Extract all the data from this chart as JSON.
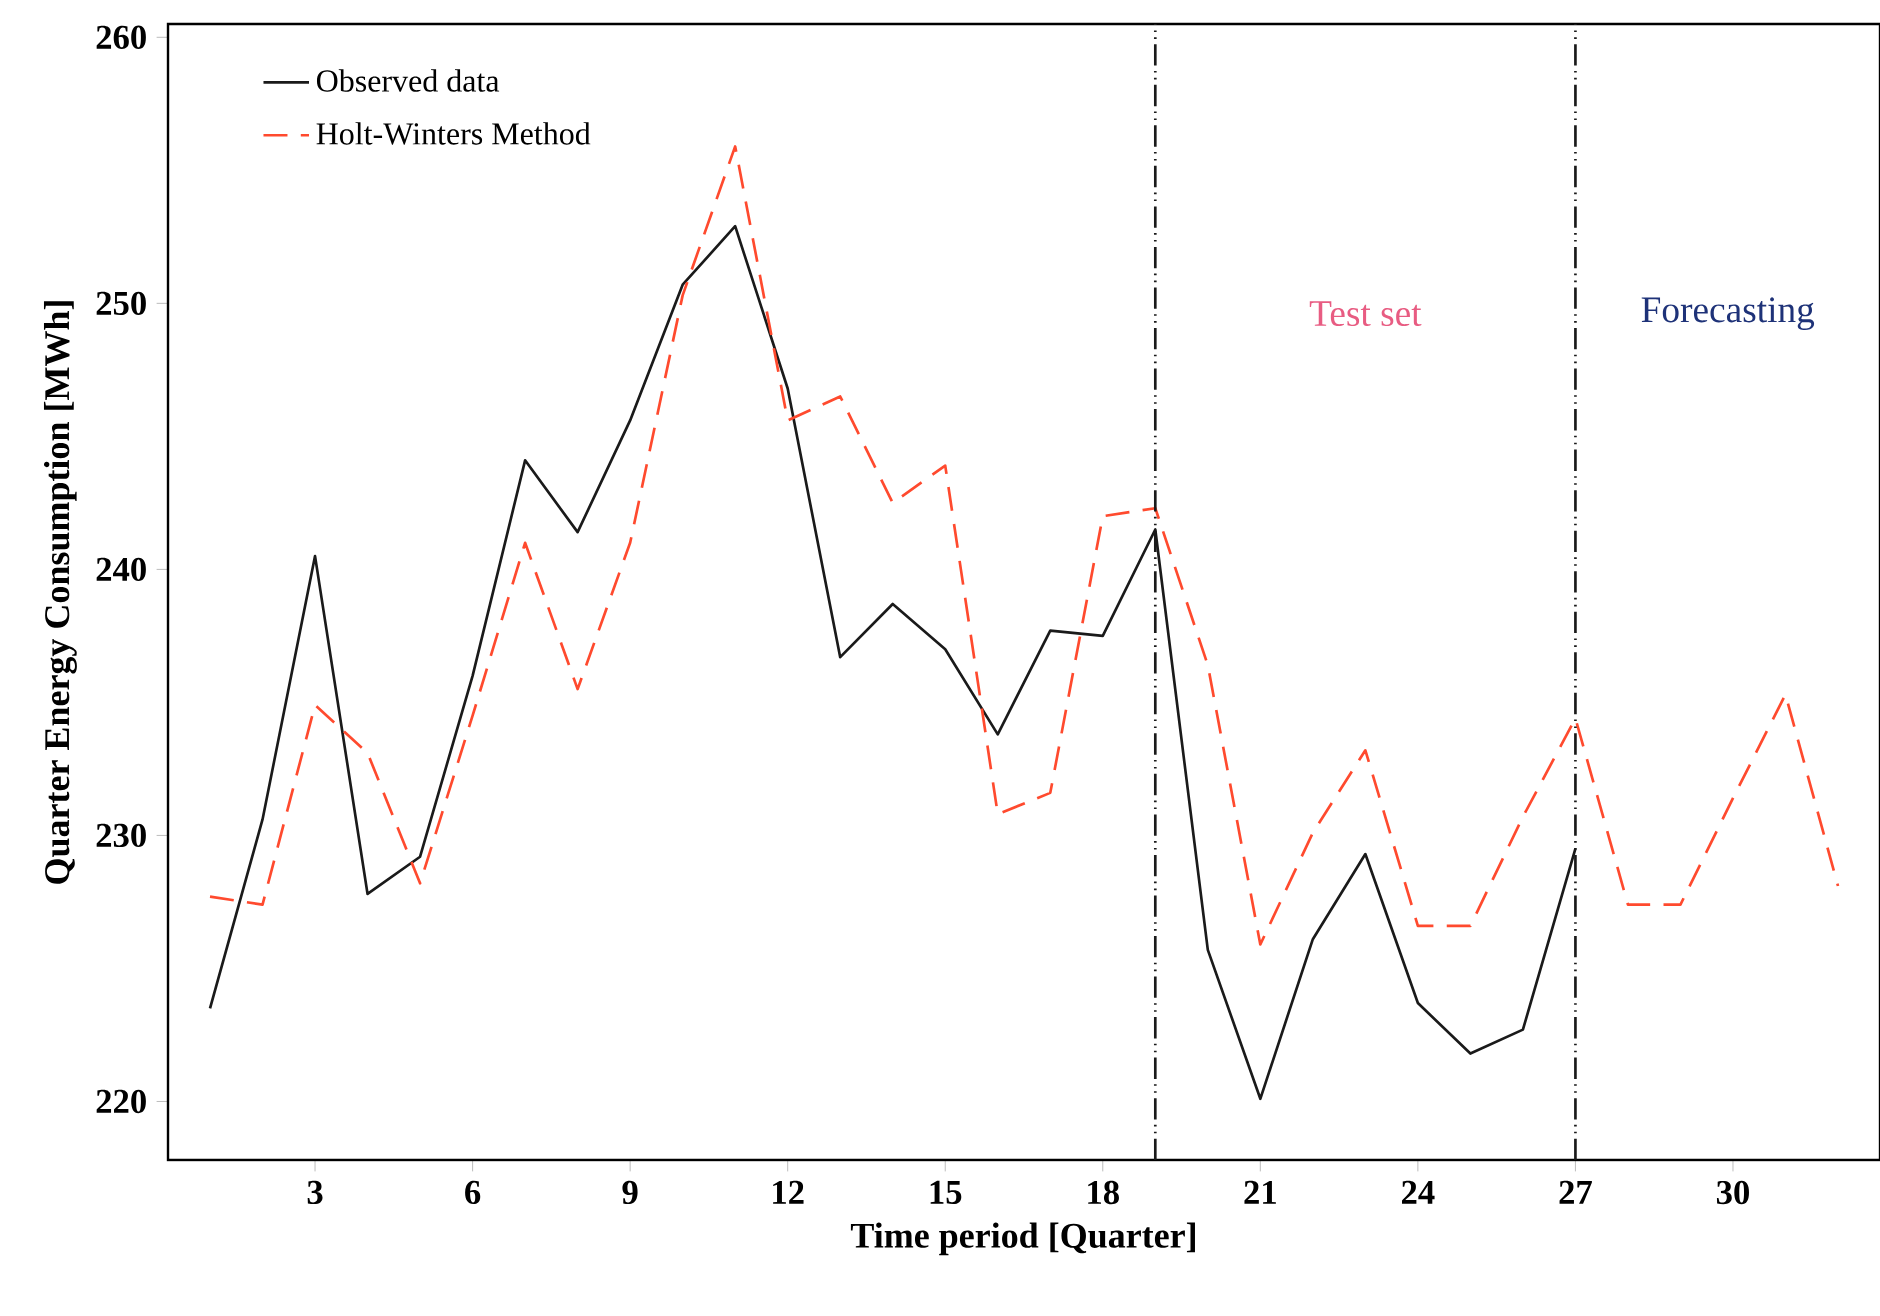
{
  "chart_data": {
    "type": "line",
    "xlabel": "Time period [Quarter]",
    "ylabel": "Quarter Energy Consumption [MWh]",
    "xlim": [
      0.2,
      32.8
    ],
    "ylim": [
      217.8,
      260.5
    ],
    "xticks": [
      3,
      6,
      9,
      12,
      15,
      18,
      21,
      24,
      27,
      30
    ],
    "yticks": [
      220,
      230,
      240,
      250,
      260
    ],
    "grid": false,
    "legend": "top left",
    "series": [
      {
        "name": "Observed data",
        "color": "#1a1a1a",
        "line_style": "solid",
        "x": [
          1,
          2,
          3,
          4,
          5,
          6,
          7,
          8,
          9,
          10,
          11,
          12,
          13,
          14,
          15,
          16,
          17,
          18,
          19,
          20,
          21,
          22,
          23,
          24,
          25,
          26,
          27
        ],
        "values": [
          223.5,
          230.6,
          240.5,
          227.8,
          229.2,
          236.0,
          244.1,
          241.4,
          245.6,
          250.7,
          252.9,
          246.8,
          236.7,
          238.7,
          237.0,
          233.8,
          237.7,
          237.5,
          241.5,
          225.7,
          220.1,
          226.1,
          229.3,
          223.7,
          221.8,
          222.7,
          229.5
        ]
      },
      {
        "name": "Holt-Winters Method",
        "color": "#ff4a2e",
        "line_style": "dashed",
        "x": [
          1,
          2,
          3,
          4,
          5,
          6,
          7,
          8,
          9,
          10,
          11,
          12,
          13,
          14,
          15,
          16,
          17,
          18,
          19,
          20,
          21,
          22,
          23,
          24,
          25,
          26,
          27,
          28,
          29,
          30,
          31,
          32
        ],
        "values": [
          227.7,
          227.4,
          234.9,
          233.1,
          228.2,
          234.5,
          241.0,
          235.5,
          241.0,
          250.3,
          255.9,
          245.6,
          246.5,
          242.5,
          243.9,
          230.8,
          231.6,
          242.0,
          242.3,
          236.4,
          225.9,
          230.1,
          233.2,
          226.6,
          226.6,
          230.7,
          234.4,
          227.4,
          227.4,
          231.4,
          235.3,
          228.1
        ]
      }
    ],
    "ref_lines": [
      {
        "axis": "x",
        "value": 19,
        "color": "#1a1a1a",
        "line_style": "dashdotdotted"
      },
      {
        "axis": "x",
        "value": 27,
        "color": "#1a1a1a",
        "line_style": "dashdotdotted"
      }
    ],
    "annotations": [
      "Test set",
      "Forecasting"
    ]
  }
}
